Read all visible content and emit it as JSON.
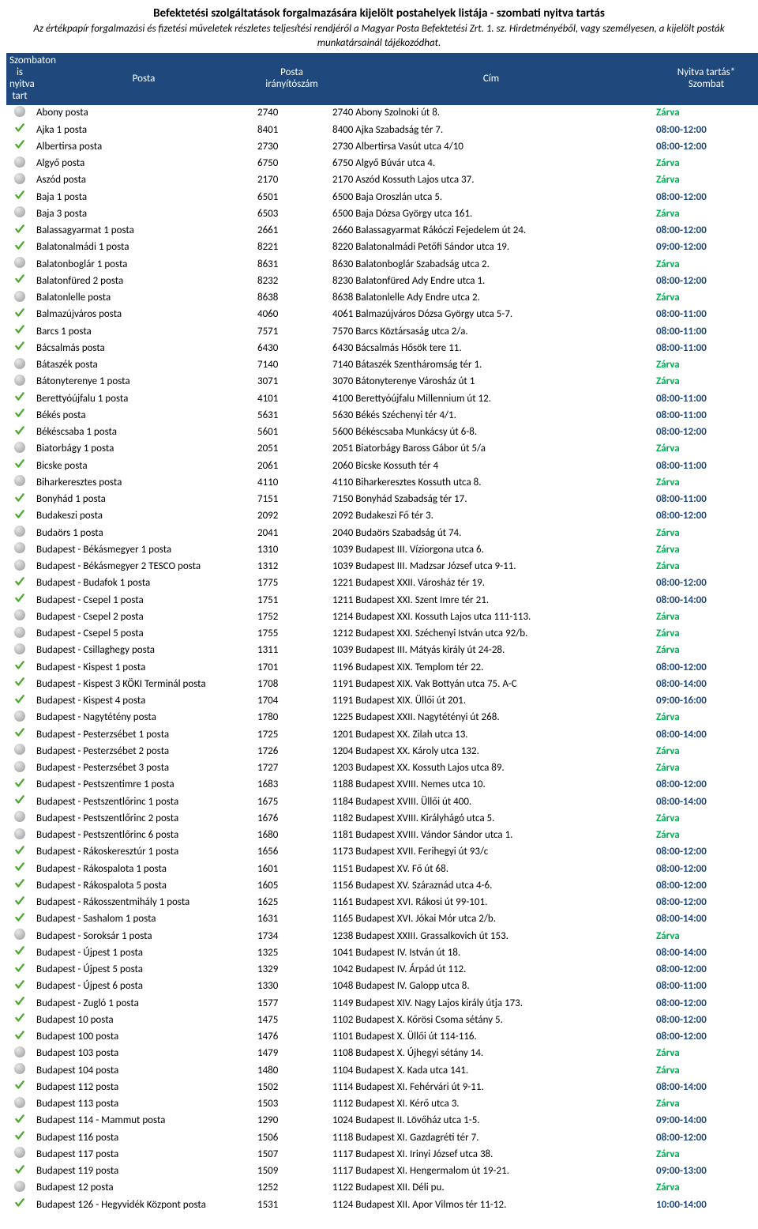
{
  "title": "Befektetési szolgáltatások forgalmazására kijelölt postahelyek listája - szombati nyitva tartás",
  "subtitle": "Az értékpapír forgalmazási és fizetési műveletek részletes teljesítési rendjéről a Magyar Posta Befektetési Zrt. 1. sz. Hirdetményéből, vagy személyesen, a kijelölt posták munkatársainál tájékozódhat.",
  "header": {
    "col1a": "Szombaton is",
    "col1b": "nyitva tart",
    "col2": "Posta",
    "col3a": "Posta",
    "col3b": "irányítószám",
    "col4": "Cím",
    "col5a": "Nyitva tartás*",
    "col5b": "Szombat"
  },
  "colors": {
    "header_bg": "#1f497d",
    "header_fg": "#ffffff",
    "closed": "#00b050",
    "open": "#1f497d",
    "check": "#4ea72e",
    "dot": "#b0b0b0"
  },
  "closed_label": "Zárva",
  "rows": [
    {
      "open": false,
      "posta": "Abony posta",
      "zip": "2740",
      "addr": "2740 Abony Szolnoki út 8.",
      "hours": "Zárva"
    },
    {
      "open": true,
      "posta": "Ajka 1 posta",
      "zip": "8401",
      "addr": "8400 Ajka Szabadság tér 7.",
      "hours": "08:00-12:00"
    },
    {
      "open": true,
      "posta": "Albertirsa posta",
      "zip": "2730",
      "addr": "2730 Albertirsa Vasút utca 4/10",
      "hours": "08:00-12:00"
    },
    {
      "open": false,
      "posta": "Algyő posta",
      "zip": "6750",
      "addr": "6750 Algyő Búvár utca 4.",
      "hours": "Zárva"
    },
    {
      "open": false,
      "posta": "Aszód posta",
      "zip": "2170",
      "addr": "2170 Aszód Kossuth Lajos utca 37.",
      "hours": "Zárva"
    },
    {
      "open": true,
      "posta": "Baja 1 posta",
      "zip": "6501",
      "addr": "6500 Baja Oroszlán utca 5.",
      "hours": "08:00-12:00"
    },
    {
      "open": false,
      "posta": "Baja 3 posta",
      "zip": "6503",
      "addr": "6500 Baja Dózsa György utca 161.",
      "hours": "Zárva"
    },
    {
      "open": true,
      "posta": "Balassagyarmat 1 posta",
      "zip": "2661",
      "addr": "2660 Balassagyarmat Rákóczi Fejedelem út 24.",
      "hours": "08:00-12:00"
    },
    {
      "open": true,
      "posta": "Balatonalmádi 1 posta",
      "zip": "8221",
      "addr": "8220 Balatonalmádi Petőfi Sándor utca 19.",
      "hours": "09:00-12:00"
    },
    {
      "open": false,
      "posta": "Balatonboglár 1 posta",
      "zip": "8631",
      "addr": "8630 Balatonboglár Szabadság utca 2.",
      "hours": "Zárva"
    },
    {
      "open": true,
      "posta": "Balatonfüred 2 posta",
      "zip": "8232",
      "addr": "8230 Balatonfüred Ady Endre utca 1.",
      "hours": "08:00-12:00"
    },
    {
      "open": false,
      "posta": "Balatonlelle posta",
      "zip": "8638",
      "addr": "8638 Balatonlelle Ady Endre utca 2.",
      "hours": "Zárva"
    },
    {
      "open": true,
      "posta": "Balmazújváros posta",
      "zip": "4060",
      "addr": "4061 Balmazújváros Dózsa György utca 5-7.",
      "hours": "08:00-11:00"
    },
    {
      "open": true,
      "posta": "Barcs 1 posta",
      "zip": "7571",
      "addr": "7570 Barcs Köztársaság utca 2/a.",
      "hours": "08:00-11:00"
    },
    {
      "open": true,
      "posta": "Bácsalmás posta",
      "zip": "6430",
      "addr": "6430 Bácsalmás Hősök tere 11.",
      "hours": "08:00-11:00"
    },
    {
      "open": false,
      "posta": "Bátaszék posta",
      "zip": "7140",
      "addr": "7140 Bátaszék Szentháromság tér 1.",
      "hours": "Zárva"
    },
    {
      "open": false,
      "posta": "Bátonyterenye 1 posta",
      "zip": "3071",
      "addr": "3070 Bátonyterenye Városház út 1",
      "hours": "Zárva"
    },
    {
      "open": true,
      "posta": "Berettyóújfalu 1 posta",
      "zip": "4101",
      "addr": "4100 Berettyóújfalu Millennium út 12.",
      "hours": "08:00-11:00"
    },
    {
      "open": true,
      "posta": "Békés posta",
      "zip": "5631",
      "addr": "5630 Békés Széchenyi tér 4/1.",
      "hours": "08:00-11:00"
    },
    {
      "open": true,
      "posta": "Békéscsaba 1 posta",
      "zip": "5601",
      "addr": "5600 Békéscsaba Munkácsy út 6-8.",
      "hours": "08:00-12:00"
    },
    {
      "open": false,
      "posta": "Biatorbágy 1 posta",
      "zip": "2051",
      "addr": "2051 Biatorbágy Baross Gábor út 5/a",
      "hours": "Zárva"
    },
    {
      "open": true,
      "posta": "Bicske posta",
      "zip": "2061",
      "addr": "2060 Bicske Kossuth tér 4",
      "hours": "08:00-11:00"
    },
    {
      "open": false,
      "posta": "Biharkeresztes posta",
      "zip": "4110",
      "addr": "4110 Biharkeresztes Kossuth utca 8.",
      "hours": "Zárva"
    },
    {
      "open": true,
      "posta": "Bonyhád 1 posta",
      "zip": "7151",
      "addr": "7150 Bonyhád Szabadság tér 17.",
      "hours": "08:00-11:00"
    },
    {
      "open": true,
      "posta": "Budakeszi posta",
      "zip": "2092",
      "addr": "2092 Budakeszi Fő tér 3.",
      "hours": "08:00-12:00"
    },
    {
      "open": false,
      "posta": "Budaörs 1 posta",
      "zip": "2041",
      "addr": "2040 Budaörs Szabadság út 74.",
      "hours": "Zárva"
    },
    {
      "open": false,
      "posta": "Budapest - Békásmegyer 1 posta",
      "zip": "1310",
      "addr": "1039 Budapest III. Víziorgona utca 6.",
      "hours": "Zárva"
    },
    {
      "open": false,
      "posta": "Budapest - Békásmegyer 2 TESCO posta",
      "zip": "1312",
      "addr": "1039 Budapest III. Madzsar József utca 9-11.",
      "hours": "Zárva"
    },
    {
      "open": true,
      "posta": "Budapest - Budafok 1 posta",
      "zip": "1775",
      "addr": "1221 Budapest XXII. Városház tér 19.",
      "hours": "08:00-12:00"
    },
    {
      "open": true,
      "posta": "Budapest - Csepel 1 posta",
      "zip": "1751",
      "addr": "1211 Budapest XXI. Szent Imre tér 21.",
      "hours": "08:00-14:00"
    },
    {
      "open": false,
      "posta": "Budapest - Csepel 2 posta",
      "zip": "1752",
      "addr": "1214 Budapest XXI. Kossuth Lajos utca 111-113.",
      "hours": "Zárva"
    },
    {
      "open": false,
      "posta": "Budapest - Csepel 5 posta",
      "zip": "1755",
      "addr": "1212 Budapest XXI. Széchenyi István utca 92/b.",
      "hours": "Zárva"
    },
    {
      "open": false,
      "posta": "Budapest - Csillaghegy posta",
      "zip": "1311",
      "addr": "1039 Budapest III. Mátyás király út 24-28.",
      "hours": "Zárva"
    },
    {
      "open": true,
      "posta": "Budapest - Kispest 1 posta",
      "zip": "1701",
      "addr": "1196 Budapest XIX. Templom tér 22.",
      "hours": "08:00-12:00"
    },
    {
      "open": true,
      "posta": "Budapest - Kispest 3 KÖKI Terminál posta",
      "zip": "1708",
      "addr": "1191 Budapest XIX. Vak Bottyán utca 75. A-C",
      "hours": "08:00-14:00"
    },
    {
      "open": true,
      "posta": "Budapest - Kispest 4 posta",
      "zip": "1704",
      "addr": "1191 Budapest XIX. Üllői út 201.",
      "hours": "09:00-16:00"
    },
    {
      "open": false,
      "posta": "Budapest - Nagytétény posta",
      "zip": "1780",
      "addr": "1225 Budapest XXII. Nagytétényi út 268.",
      "hours": "Zárva"
    },
    {
      "open": true,
      "posta": "Budapest - Pesterzsébet 1 posta",
      "zip": "1725",
      "addr": "1201 Budapest XX. Zilah utca 13.",
      "hours": "08:00-14:00"
    },
    {
      "open": false,
      "posta": "Budapest - Pesterzsébet 2 posta",
      "zip": "1726",
      "addr": "1204 Budapest XX. Károly utca 132.",
      "hours": "Zárva"
    },
    {
      "open": false,
      "posta": "Budapest - Pesterzsébet 3 posta",
      "zip": "1727",
      "addr": "1203 Budapest XX. Kossuth Lajos utca 89.",
      "hours": "Zárva"
    },
    {
      "open": true,
      "posta": "Budapest - Pestszentimre 1 posta",
      "zip": "1683",
      "addr": "1188 Budapest XVIII. Nemes utca 10.",
      "hours": "08:00-12:00"
    },
    {
      "open": true,
      "posta": "Budapest - Pestszentlőrinc 1 posta",
      "zip": "1675",
      "addr": "1184 Budapest XVIII. Üllői út 400.",
      "hours": "08:00-14:00"
    },
    {
      "open": false,
      "posta": "Budapest - Pestszentlőrinc 2 posta",
      "zip": "1676",
      "addr": "1182 Budapest XVIII. Királyhágó utca 5.",
      "hours": "Zárva"
    },
    {
      "open": false,
      "posta": "Budapest - Pestszentlőrinc 6 posta",
      "zip": "1680",
      "addr": "1181 Budapest XVIII. Vándor Sándor utca 1.",
      "hours": "Zárva"
    },
    {
      "open": true,
      "posta": "Budapest - Rákoskeresztúr 1 posta",
      "zip": "1656",
      "addr": "1173 Budapest XVII. Ferihegyi út 93/c",
      "hours": "08:00-12:00"
    },
    {
      "open": true,
      "posta": "Budapest - Rákospalota 1 posta",
      "zip": "1601",
      "addr": "1151 Budapest XV. Fő út 68.",
      "hours": "08:00-12:00"
    },
    {
      "open": true,
      "posta": "Budapest - Rákospalota 5 posta",
      "zip": "1605",
      "addr": "1156 Budapest XV. Száraznád utca 4-6.",
      "hours": "08:00-12:00"
    },
    {
      "open": true,
      "posta": "Budapest - Rákosszentmihály 1 posta",
      "zip": "1625",
      "addr": "1161 Budapest XVI. Rákosi út 99-101.",
      "hours": "08:00-12:00"
    },
    {
      "open": true,
      "posta": "Budapest - Sashalom 1 posta",
      "zip": "1631",
      "addr": "1165 Budapest XVI. Jókai Mór utca 2/b.",
      "hours": "08:00-14:00"
    },
    {
      "open": false,
      "posta": "Budapest - Soroksár 1 posta",
      "zip": "1734",
      "addr": "1238 Budapest XXIII. Grassalkovich út 153.",
      "hours": "Zárva"
    },
    {
      "open": true,
      "posta": "Budapest - Újpest 1 posta",
      "zip": "1325",
      "addr": "1041 Budapest IV. István út 18.",
      "hours": "08:00-14:00"
    },
    {
      "open": true,
      "posta": "Budapest - Újpest 5 posta",
      "zip": "1329",
      "addr": "1042 Budapest IV. Árpád út 112.",
      "hours": "08:00-12:00"
    },
    {
      "open": true,
      "posta": "Budapest - Újpest 6 posta",
      "zip": "1330",
      "addr": "1048 Budapest IV. Galopp utca 8.",
      "hours": "08:00-11:00"
    },
    {
      "open": true,
      "posta": "Budapest - Zugló 1 posta",
      "zip": "1577",
      "addr": "1149 Budapest XIV. Nagy Lajos király útja 173.",
      "hours": "08:00-12:00"
    },
    {
      "open": true,
      "posta": "Budapest 10 posta",
      "zip": "1475",
      "addr": "1102 Budapest X. Kőrösi Csoma sétány 5.",
      "hours": "08:00-12:00"
    },
    {
      "open": true,
      "posta": "Budapest 100 posta",
      "zip": "1476",
      "addr": "1101 Budapest X. Üllői út 114-116.",
      "hours": "08:00-12:00"
    },
    {
      "open": false,
      "posta": "Budapest 103 posta",
      "zip": "1479",
      "addr": "1108 Budapest X. Újhegyi sétány 14.",
      "hours": "Zárva"
    },
    {
      "open": false,
      "posta": "Budapest 104 posta",
      "zip": "1480",
      "addr": "1104 Budapest X. Kada utca 141.",
      "hours": "Zárva"
    },
    {
      "open": true,
      "posta": "Budapest 112 posta",
      "zip": "1502",
      "addr": "1114 Budapest XI. Fehérvári út 9-11.",
      "hours": "08:00-14:00"
    },
    {
      "open": false,
      "posta": "Budapest 113 posta",
      "zip": "1503",
      "addr": "1112 Budapest XI. Kérő utca 3.",
      "hours": "Zárva"
    },
    {
      "open": true,
      "posta": "Budapest 114 - Mammut posta",
      "zip": "1290",
      "addr": "1024 Budapest II. Lövőház utca 1-5.",
      "hours": "09:00-14:00"
    },
    {
      "open": true,
      "posta": "Budapest 116 posta",
      "zip": "1506",
      "addr": "1118 Budapest XI. Gazdagréti tér 7.",
      "hours": "08:00-12:00"
    },
    {
      "open": false,
      "posta": "Budapest 117 posta",
      "zip": "1507",
      "addr": "1117 Budapest XI. Irinyi József utca 38.",
      "hours": "Zárva"
    },
    {
      "open": true,
      "posta": "Budapest 119 posta",
      "zip": "1509",
      "addr": "1117 Budapest XI. Hengermalom út 19-21.",
      "hours": "09:00-13:00"
    },
    {
      "open": false,
      "posta": "Budapest 12 posta",
      "zip": "1252",
      "addr": "1122 Budapest XII. Déli pu.",
      "hours": "Zárva"
    },
    {
      "open": true,
      "posta": "Budapest 126 - Hegyvidék Központ posta",
      "zip": "1531",
      "addr": "1124 Budapest XII. Apor Vilmos tér 11-12.",
      "hours": "10:00-14:00"
    }
  ]
}
